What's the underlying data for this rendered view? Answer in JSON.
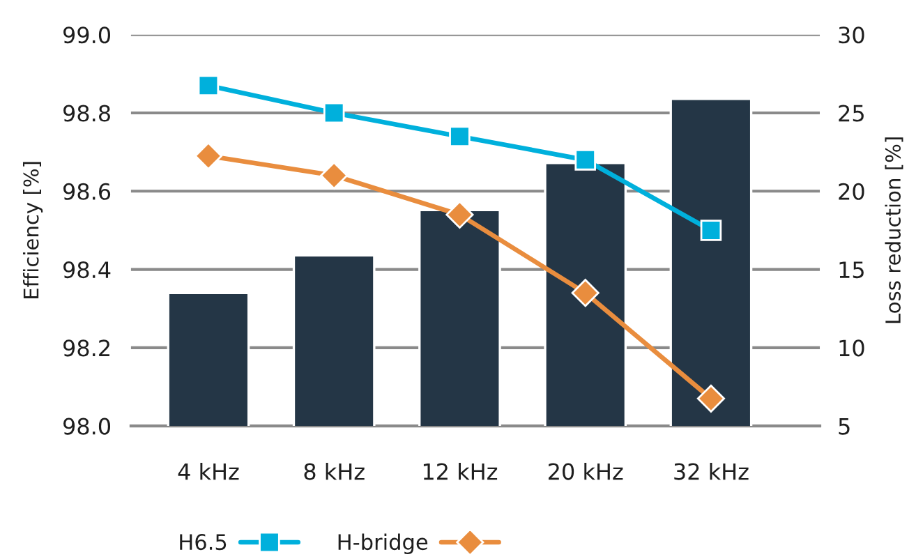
{
  "chart_data": {
    "type": "bar",
    "ylabel": "Efficiency [%]",
    "y2label": "Loss reduction [%]",
    "categories": [
      "4 kHz",
      "8 kHz",
      "12 kHz",
      "20 kHz",
      "32 kHz"
    ],
    "series": [
      {
        "axis": "y2",
        "color": "#243646",
        "values": [
          13.5,
          15.9,
          18.8,
          21.8,
          25.9
        ]
      },
      {
        "name": "H6.5",
        "type": "line",
        "color": "#00b0dc",
        "marker": "square",
        "values": [
          98.87,
          98.8,
          98.74,
          98.68,
          98.5
        ]
      },
      {
        "name": "H-bridge",
        "type": "line",
        "color": "#e98d3e",
        "marker": "diamond",
        "values": [
          98.69,
          98.64,
          98.54,
          98.34,
          98.07
        ]
      }
    ],
    "ylim": [
      98.0,
      99.0
    ],
    "yticks": [
      {
        "value": 98.0,
        "label": "98.0"
      },
      {
        "value": 98.2,
        "label": "98.2"
      },
      {
        "value": 98.4,
        "label": "98.4"
      },
      {
        "value": 98.6,
        "label": "98.6"
      },
      {
        "value": 98.8,
        "label": "98.8"
      },
      {
        "value": 99.0,
        "label": "99.0"
      }
    ],
    "y2lim": [
      5,
      30
    ],
    "y2ticks": [
      5,
      10,
      15,
      20,
      25,
      30
    ],
    "grid": "y",
    "legend": "bottom",
    "line_style": "solid"
  }
}
